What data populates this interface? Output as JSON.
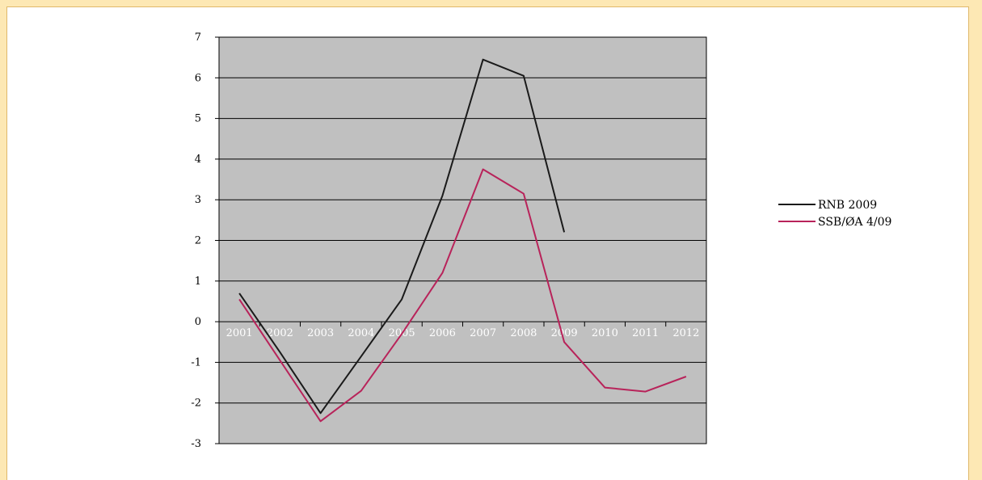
{
  "chart_data": {
    "type": "line",
    "title": "",
    "xlabel": "",
    "ylabel": "",
    "categories": [
      "2001",
      "2002",
      "2003",
      "2004",
      "2005",
      "2006",
      "2007",
      "2008",
      "2009",
      "2010",
      "2011",
      "2012"
    ],
    "ylim": [
      -3,
      7
    ],
    "yticks": [
      "7",
      "6",
      "5",
      "4",
      "3",
      "2",
      "1",
      "0",
      "-1",
      "-2",
      "-3"
    ],
    "grid": true,
    "legend_position": "right",
    "series": [
      {
        "name": "RNB 2009",
        "color": "#1a1a1a",
        "values": [
          0.7,
          -0.75,
          -2.25,
          -0.85,
          0.55,
          3.1,
          6.45,
          6.05,
          2.2,
          null,
          null,
          null
        ]
      },
      {
        "name": "SSB/ØA 4/09",
        "color": "#b8235a",
        "values": [
          0.55,
          -0.95,
          -2.45,
          -1.7,
          -0.3,
          1.2,
          3.75,
          3.15,
          -0.5,
          -1.62,
          -1.72,
          -1.35
        ]
      }
    ],
    "plot_background": "#c0c0c0"
  }
}
